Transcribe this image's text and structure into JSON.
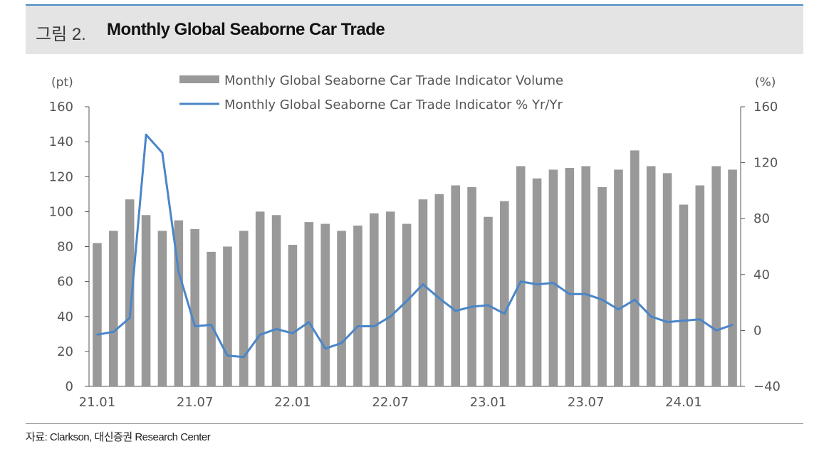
{
  "header": {
    "figure_label": "그림 2.",
    "title": "Monthly Global Seaborne Car Trade"
  },
  "source": "자료: Clarkson, 대신증권 Research Center",
  "chart_data": {
    "type": "bar",
    "left_unit": "(pt)",
    "right_unit": "(%)",
    "y_left": {
      "range": [
        0,
        160
      ],
      "ticks": [
        0,
        20,
        40,
        60,
        80,
        100,
        120,
        140,
        160
      ]
    },
    "y_right": {
      "range": [
        -40,
        160
      ],
      "ticks": [
        -40,
        0,
        40,
        80,
        120,
        160
      ]
    },
    "x_tick_labels": [
      {
        "index": 0,
        "label": "21.01"
      },
      {
        "index": 6,
        "label": "21.07"
      },
      {
        "index": 12,
        "label": "22.01"
      },
      {
        "index": 18,
        "label": "22.07"
      },
      {
        "index": 24,
        "label": "23.01"
      },
      {
        "index": 30,
        "label": "23.07"
      },
      {
        "index": 36,
        "label": "24.01"
      }
    ],
    "categories": [
      "21.01",
      "21.02",
      "21.03",
      "21.04",
      "21.05",
      "21.06",
      "21.07",
      "21.08",
      "21.09",
      "21.10",
      "21.11",
      "21.12",
      "22.01",
      "22.02",
      "22.03",
      "22.04",
      "22.05",
      "22.06",
      "22.07",
      "22.08",
      "22.09",
      "22.10",
      "22.11",
      "22.12",
      "23.01",
      "23.02",
      "23.03",
      "23.04",
      "23.05",
      "23.06",
      "23.07",
      "23.08",
      "23.09",
      "23.10",
      "23.11",
      "23.12",
      "24.01",
      "24.02",
      "24.03",
      "24.04"
    ],
    "series": [
      {
        "name": "Monthly Global Seaborne Car Trade Indicator Volume",
        "kind": "bar",
        "axis": "left",
        "color": "#999999",
        "values": [
          82,
          89,
          107,
          98,
          89,
          95,
          90,
          77,
          80,
          89,
          100,
          98,
          81,
          94,
          93,
          89,
          92,
          99,
          100,
          93,
          107,
          110,
          115,
          114,
          97,
          106,
          126,
          119,
          124,
          125,
          126,
          114,
          124,
          135,
          126,
          122,
          104,
          115,
          126,
          124
        ]
      },
      {
        "name": "Monthly Global Seaborne Car Trade Indicator % Yr/Yr",
        "kind": "line",
        "axis": "right",
        "color": "#4a86c8",
        "values": [
          -3,
          -1,
          9,
          140,
          127,
          42,
          3,
          4,
          -18,
          -19,
          -3,
          1,
          -2,
          6,
          -13,
          -9,
          3,
          3,
          10,
          21,
          33,
          23,
          14,
          17,
          18,
          12,
          35,
          33,
          34,
          26,
          26,
          22,
          15,
          22,
          10,
          6,
          7,
          8,
          0,
          4
        ]
      }
    ]
  }
}
